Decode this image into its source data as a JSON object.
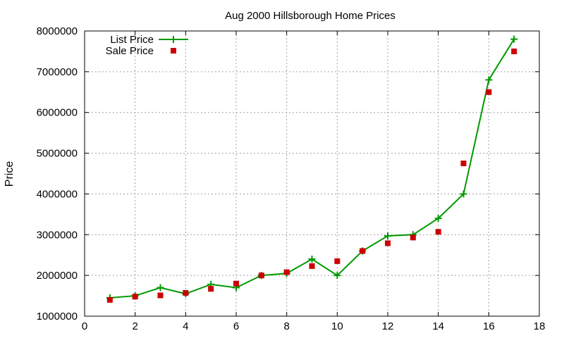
{
  "chart_data": {
    "type": "line",
    "title": "Aug 2000 Hillsborough Home Prices",
    "xlabel": "",
    "ylabel": "Price",
    "xlim": [
      0,
      18
    ],
    "ylim": [
      1000000,
      8000000
    ],
    "xticks": [
      0,
      2,
      4,
      6,
      8,
      10,
      12,
      14,
      16,
      18
    ],
    "yticks": [
      1000000,
      2000000,
      3000000,
      4000000,
      5000000,
      6000000,
      7000000,
      8000000
    ],
    "grid": true,
    "legend_position": "top-left",
    "series": [
      {
        "name": "List Price",
        "style": "linespoints",
        "marker": "plus",
        "color": "#009900",
        "x": [
          1,
          2,
          3,
          4,
          5,
          6,
          7,
          8,
          9,
          10,
          11,
          12,
          13,
          14,
          15,
          16,
          17
        ],
        "y": [
          1450000,
          1500000,
          1700000,
          1550000,
          1780000,
          1700000,
          2000000,
          2050000,
          2400000,
          2000000,
          2600000,
          2970000,
          3000000,
          3400000,
          4000000,
          6800000,
          7800000
        ]
      },
      {
        "name": "Sale Price",
        "style": "points",
        "marker": "square",
        "color": "#cc0000",
        "x": [
          1,
          2,
          3,
          4,
          5,
          6,
          7,
          8,
          9,
          10,
          11,
          12,
          13,
          14,
          15,
          16,
          17
        ],
        "y": [
          1400000,
          1480000,
          1510000,
          1570000,
          1670000,
          1800000,
          2000000,
          2080000,
          2230000,
          2350000,
          2600000,
          2790000,
          2930000,
          3070000,
          4750000,
          6500000,
          7500000
        ]
      }
    ]
  }
}
